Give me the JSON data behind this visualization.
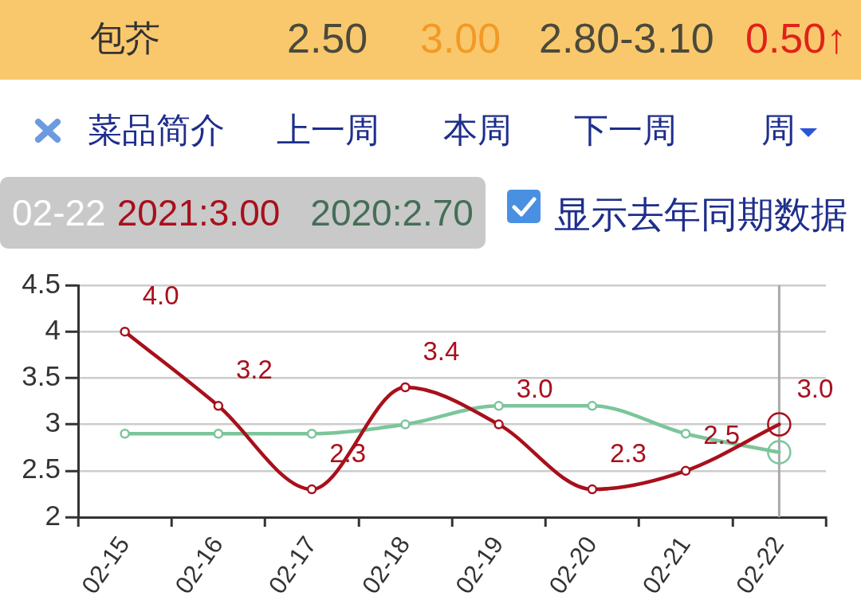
{
  "chart_data": {
    "type": "line",
    "title": "包芥",
    "annotations": [
      "2.50",
      "3.00",
      "2.80-3.10",
      "0.50↑",
      "菜品简介",
      "上一周",
      "本周",
      "下一周",
      "周",
      "显示去年同期数据",
      "02-22",
      "2021:3.00",
      "2020:2.70"
    ],
    "categories": [
      "02-15",
      "02-16",
      "02-17",
      "02-18",
      "02-19",
      "02-20",
      "02-21",
      "02-22"
    ],
    "series": [
      {
        "color": "#a8101c",
        "values": [
          4.0,
          3.2,
          2.3,
          3.4,
          3.0,
          2.3,
          2.5,
          3.0
        ],
        "value_labels": [
          "4.0",
          "3.2",
          "2.3",
          "3.4",
          "3.0",
          "2.3",
          "2.5",
          "3.0"
        ]
      },
      {
        "color": "#7cc59b",
        "values": [
          2.9,
          2.9,
          2.9,
          3.0,
          3.2,
          3.2,
          2.9,
          2.7
        ]
      }
    ],
    "ylim": [
      2,
      4.5
    ],
    "yticks": [
      2,
      2.5,
      3,
      3.5,
      4,
      4.5
    ],
    "grid": "y",
    "marker": "circle",
    "line_style": "solid",
    "ref_lines": [
      {
        "axis": "x",
        "value": "02-22",
        "color": "#aaaaaa"
      }
    ]
  }
}
